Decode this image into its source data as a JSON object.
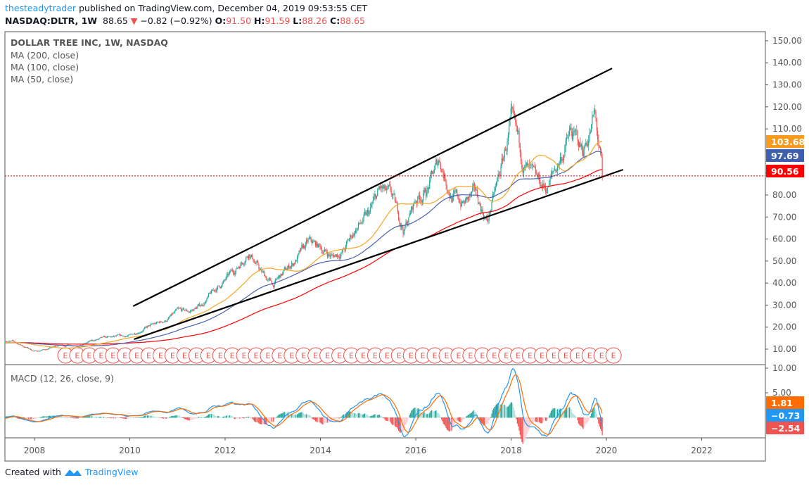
{
  "header": {
    "author": "thesteadytrader",
    "published": "published on TradingView.com, December 04, 2019 09:53:55 CET",
    "symbol": "NASDAQ:DLTR, 1W",
    "last": "88.65",
    "change": "−0.82 (−0.92%)",
    "o_label": "O:",
    "o": "91.50",
    "h_label": "H:",
    "h": "91.59",
    "l_label": "L:",
    "l": "88.26",
    "c_label": "C:",
    "c": "88.65"
  },
  "legend": {
    "title": "DOLLAR TREE INC, 1W, NASDAQ",
    "ma200": "MA (200, close)",
    "ma100": "MA (100, close)",
    "ma50": "MA (50, close)",
    "macd": "MACD (12, 26, close, 9)"
  },
  "footer": {
    "created": "Created with",
    "brand": "TradingView"
  },
  "colors": {
    "up": "#26a69a",
    "down": "#ef5350",
    "ma200": "#ff0000",
    "ma100": "#4a5fb0",
    "ma50": "#f5a623",
    "macd": "#2196f3",
    "signal": "#ff6d00",
    "earnings": "#ef5350"
  },
  "chart_data": {
    "type": "candlestick",
    "price_axis": {
      "ticks": [
        "150.00",
        "140.00",
        "130.00",
        "120.00",
        "110.00",
        "100.00",
        "90.00",
        "80.00",
        "70.00",
        "60.00",
        "50.00",
        "40.00",
        "30.00",
        "20.00",
        "10.00"
      ],
      "range": [
        10,
        150
      ]
    },
    "macd_axis": {
      "ticks": [
        "10.00",
        "5.00"
      ]
    },
    "time_axis": {
      "ticks": [
        "2008",
        "2010",
        "2012",
        "2014",
        "2016",
        "2018",
        "2020",
        "2022"
      ]
    },
    "price_keyframes": [
      [
        2007.38,
        14
      ],
      [
        2007.6,
        13
      ],
      [
        2007.8,
        11
      ],
      [
        2008.0,
        9
      ],
      [
        2008.25,
        10
      ],
      [
        2008.5,
        11.5
      ],
      [
        2008.75,
        12
      ],
      [
        2009.0,
        12
      ],
      [
        2009.25,
        14
      ],
      [
        2009.5,
        15
      ],
      [
        2009.75,
        15.5
      ],
      [
        2010.0,
        16
      ],
      [
        2010.25,
        19
      ],
      [
        2010.5,
        21
      ],
      [
        2010.75,
        23
      ],
      [
        2011.0,
        27
      ],
      [
        2011.25,
        27
      ],
      [
        2011.5,
        30
      ],
      [
        2011.75,
        36
      ],
      [
        2012.0,
        41
      ],
      [
        2012.25,
        47
      ],
      [
        2012.5,
        55
      ],
      [
        2012.75,
        45
      ],
      [
        2013.0,
        39
      ],
      [
        2013.25,
        45
      ],
      [
        2013.5,
        51
      ],
      [
        2013.75,
        58
      ],
      [
        2014.0,
        56
      ],
      [
        2014.25,
        52
      ],
      [
        2014.5,
        55
      ],
      [
        2014.75,
        65
      ],
      [
        2015.0,
        70
      ],
      [
        2015.25,
        82
      ],
      [
        2015.5,
        78
      ],
      [
        2015.75,
        64
      ],
      [
        2016.0,
        78
      ],
      [
        2016.25,
        83
      ],
      [
        2016.5,
        96
      ],
      [
        2016.75,
        80
      ],
      [
        2017.0,
        76
      ],
      [
        2017.25,
        80
      ],
      [
        2017.5,
        68
      ],
      [
        2017.75,
        88
      ],
      [
        2018.0,
        112
      ],
      [
        2018.25,
        95
      ],
      [
        2018.5,
        85
      ],
      [
        2018.75,
        83
      ],
      [
        2019.0,
        95
      ],
      [
        2019.25,
        108
      ],
      [
        2019.5,
        100
      ],
      [
        2019.75,
        116
      ],
      [
        2019.92,
        88.65
      ]
    ],
    "trendlines": [
      {
        "from": [
          2010.07,
          29.5
        ],
        "to": [
          2020.12,
          137.5
        ]
      },
      {
        "from": [
          2010.09,
          14.5
        ],
        "to": [
          2020.35,
          91.5
        ]
      }
    ],
    "current_price": 88.65,
    "price_tags": [
      {
        "label": "103.68",
        "value": 103.68,
        "color": "#f89a1c"
      },
      {
        "label": "97.69",
        "value": 97.69,
        "color": "#3f5fae"
      },
      {
        "label": "90.56",
        "value": 90.56,
        "color": "#ff0000"
      }
    ],
    "macd_tags": [
      {
        "label": "1.81",
        "value": 1.81,
        "color": "#ff6d00"
      },
      {
        "label": "−0.73",
        "value": -0.73,
        "color": "#2196f3"
      },
      {
        "label": "−2.54",
        "value": -2.54,
        "color": "#ef5350"
      }
    ],
    "earnings": {
      "label": "E",
      "first": 2008.65,
      "last": 2020.24
    }
  }
}
